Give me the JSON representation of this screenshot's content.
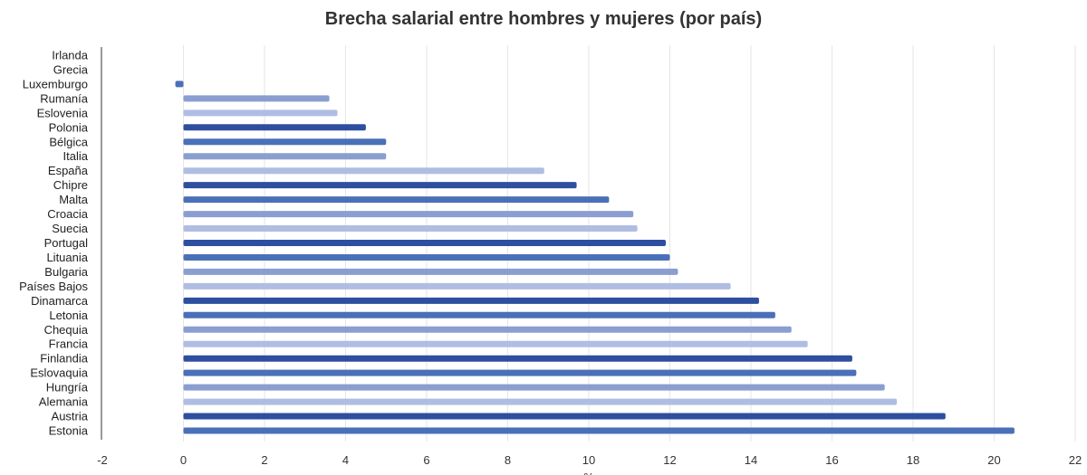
{
  "chart_data": {
    "type": "bar",
    "orientation": "horizontal",
    "title": "Brecha salarial entre hombres y mujeres (por país)",
    "xlabel": "%",
    "ylabel": "",
    "xlim": [
      -2,
      22
    ],
    "xticks": [
      -2,
      0,
      2,
      4,
      6,
      8,
      10,
      12,
      14,
      16,
      18,
      20,
      22
    ],
    "grid": true,
    "colors": [
      "#b0bde3",
      "#2e4f9f",
      "#4a70b8",
      "#8a9fd0"
    ],
    "categories": [
      "Irlanda",
      "Grecia",
      "Luxemburgo",
      "Rumanía",
      "Eslovenia",
      "Polonia",
      "Bélgica",
      "Italia",
      "España",
      "Chipre",
      "Malta",
      "Croacia",
      "Suecia",
      "Portugal",
      "Lituania",
      "Bulgaria",
      "Países Bajos",
      "Dinamarca",
      "Letonia",
      "Chequia",
      "Francia",
      "Finlandia",
      "Eslovaquia",
      "Hungría",
      "Alemania",
      "Austria",
      "Estonia"
    ],
    "values": [
      null,
      null,
      -0.2,
      3.6,
      3.8,
      4.5,
      5.0,
      5.0,
      8.9,
      9.7,
      10.5,
      11.1,
      11.2,
      11.9,
      12.0,
      12.2,
      13.5,
      14.2,
      14.6,
      15.0,
      15.4,
      16.5,
      16.6,
      17.3,
      17.6,
      18.8,
      20.5
    ]
  }
}
